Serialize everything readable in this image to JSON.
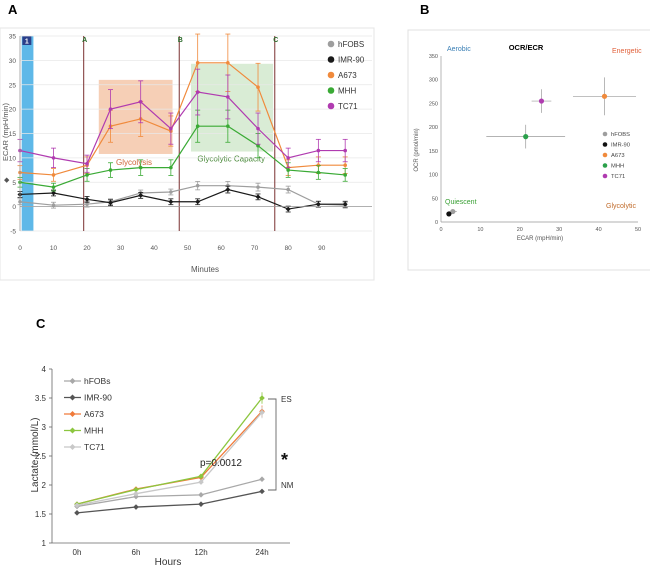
{
  "chart_data": [
    {
      "panel": "A",
      "type": "line",
      "title": "",
      "xlabel": "Minutes",
      "ylabel": "ECAR (mpH/min)",
      "xlim": [
        0,
        105
      ],
      "ylim": [
        -5,
        35
      ],
      "xticks": [
        0,
        10,
        20,
        30,
        40,
        50,
        60,
        70,
        80,
        90
      ],
      "yticks": [
        -5,
        0,
        5,
        10,
        15,
        20,
        25,
        30,
        35
      ],
      "injections": [
        {
          "label": "A",
          "x": 19
        },
        {
          "label": "B",
          "x": 47.5
        },
        {
          "label": "C",
          "x": 76
        }
      ],
      "baseline_marker": "1",
      "regions": [
        {
          "label": "Glycolysis",
          "color": "#f4c7a9"
        },
        {
          "label": "Glycolytic Capacity",
          "color": "#d5ead0"
        }
      ],
      "series": [
        {
          "name": "hFOBS",
          "color": "#9e9e9e",
          "x": [
            0,
            10,
            20,
            27,
            36,
            45,
            53,
            62,
            71,
            80,
            89,
            97
          ],
          "y": [
            1,
            0.3,
            0.5,
            1,
            2.8,
            3,
            4.3,
            4.3,
            4,
            3.5,
            0.5,
            0.3
          ]
        },
        {
          "name": "IMR-90",
          "color": "#1a1a1a",
          "x": [
            0,
            10,
            20,
            27,
            36,
            45,
            53,
            62,
            71,
            80,
            89,
            97
          ],
          "y": [
            2.5,
            2.8,
            1.5,
            0.8,
            2.3,
            1,
            1,
            3.5,
            2,
            -0.5,
            0.5,
            0.5
          ]
        },
        {
          "name": "A673",
          "color": "#f08a3c",
          "x": [
            0,
            10,
            20,
            27,
            36,
            45,
            53,
            62,
            71,
            80,
            89,
            97
          ],
          "y": [
            7,
            6.5,
            8.5,
            16.5,
            18,
            15.5,
            29.5,
            29.5,
            24.5,
            8,
            8.5,
            8.5
          ]
        },
        {
          "name": "MHH",
          "color": "#3aaa35",
          "x": [
            0,
            10,
            20,
            27,
            36,
            45,
            53,
            62,
            71,
            80,
            89,
            97
          ],
          "y": [
            5,
            4,
            6.5,
            7.5,
            8,
            8,
            16.5,
            16.5,
            12.5,
            7.5,
            7,
            6.5
          ]
        },
        {
          "name": "TC71",
          "color": "#b03bb0",
          "x": [
            0,
            10,
            20,
            27,
            36,
            45,
            53,
            62,
            71,
            80,
            89,
            97
          ],
          "y": [
            11.5,
            10,
            8.8,
            20,
            21.5,
            16,
            23.5,
            22.5,
            16,
            10,
            11.5,
            11.5
          ]
        }
      ]
    },
    {
      "panel": "B",
      "type": "scatter",
      "title": "OCR/ECR",
      "xlabel": "ECAR (mpH/min)",
      "ylabel": "OCR (pmol/min)",
      "xlim": [
        0,
        50
      ],
      "ylim": [
        0,
        350
      ],
      "xticks": [
        0,
        10,
        20,
        30,
        40,
        50
      ],
      "yticks": [
        0,
        50,
        100,
        150,
        200,
        250,
        300,
        350
      ],
      "quadrants": [
        {
          "label": "Aerobic",
          "color": "#3a7fb5"
        },
        {
          "label": "Energetic",
          "color": "#e0603a"
        },
        {
          "label": "Quiescent",
          "color": "#3aa035"
        },
        {
          "label": "Glycolytic",
          "color": "#c06a2a"
        }
      ],
      "points": [
        {
          "name": "hFOBS",
          "color": "#9e9e9e",
          "x": 3,
          "y": 22,
          "xerr": 1,
          "yerr": 5
        },
        {
          "name": "IMR-90",
          "color": "#111111",
          "x": 2,
          "y": 17,
          "xerr": 0.5,
          "yerr": 4
        },
        {
          "name": "A673",
          "color": "#f08a3c",
          "x": 41.5,
          "y": 265,
          "xerr": 8,
          "yerr": 40
        },
        {
          "name": "MHH",
          "color": "#2aa04a",
          "x": 21.5,
          "y": 180,
          "xerr": 10,
          "yerr": 25
        },
        {
          "name": "TC71",
          "color": "#b03bb0",
          "x": 25.5,
          "y": 255,
          "xerr": 2.5,
          "yerr": 25
        }
      ]
    },
    {
      "panel": "C",
      "type": "line",
      "title": "",
      "xlabel": "Hours",
      "ylabel": "Lactate (mmol/L)",
      "categories": [
        "0h",
        "6h",
        "12h",
        "24h"
      ],
      "ylim": [
        1,
        4
      ],
      "yticks": [
        "1",
        "1.5",
        "2",
        "2.5",
        "3",
        "3.5",
        "4"
      ],
      "annotations": {
        "pvalue": "p=0.0012",
        "star": "*",
        "es": "ES",
        "nm": "NM"
      },
      "series": [
        {
          "name": "hFOBs",
          "color": "#a8a8a8",
          "values": [
            1.63,
            1.8,
            1.83,
            2.1
          ]
        },
        {
          "name": "IMR-90",
          "color": "#555555",
          "values": [
            1.52,
            1.62,
            1.67,
            1.89
          ]
        },
        {
          "name": "A673",
          "color": "#f07a3a",
          "values": [
            1.67,
            1.93,
            2.13,
            3.27
          ]
        },
        {
          "name": "MHH",
          "color": "#8cc63f",
          "values": [
            1.67,
            1.92,
            2.15,
            3.5
          ]
        },
        {
          "name": "TC71",
          "color": "#c8c8c8",
          "values": [
            1.65,
            1.85,
            2.05,
            3.25
          ]
        }
      ]
    }
  ]
}
